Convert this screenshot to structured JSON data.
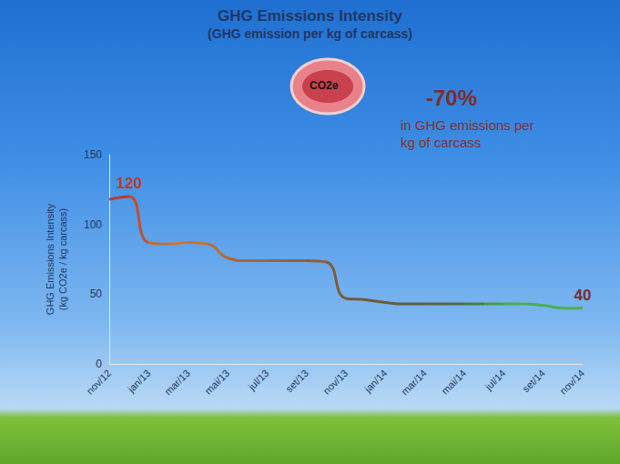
{
  "chart_data": {
    "type": "line",
    "title": "GHG Emissions Intensity",
    "subtitle": "(GHG emission per kg of carcass)",
    "y_label": "GHG Emissions Intensity (kg CO2e / kg carcass)",
    "categories": [
      "nov/12",
      null,
      "jan/13",
      null,
      "mar/13",
      null,
      "mai/13",
      null,
      "jul/13",
      null,
      "set/13",
      null,
      "nov/13",
      null,
      "jan/14",
      null,
      "mar/14",
      null,
      "mai/14",
      null,
      "jul/14",
      null,
      "set/14",
      null,
      "nov/14"
    ],
    "values": [
      118,
      120,
      87,
      86,
      87,
      86,
      76,
      74,
      74,
      74,
      74,
      73,
      47,
      46,
      44,
      43,
      43,
      43,
      43,
      43,
      43,
      43,
      42,
      40,
      40
    ],
    "colors": [
      "#c0392b",
      "#c0392b",
      "#c8642e",
      "#c87533",
      "#c87533",
      "#c07035",
      "#b06a38",
      "#a8653a",
      "#a0643a",
      "#9a603a",
      "#94603a",
      "#8a5a3a",
      "#7a5a38",
      "#6e5a38",
      "#6b5a3a",
      "#655e3a",
      "#60603a",
      "#5a663a",
      "#50703a",
      "#4a8a3c",
      "#4caf50",
      "#4caf50",
      "#4caf50",
      "#4caf50",
      "#4caf50"
    ],
    "ylim": [
      0,
      150
    ],
    "yticks": [
      0,
      50,
      100,
      150
    ],
    "grid": false,
    "annotations": [
      {
        "text": "120",
        "value": 120
      },
      {
        "text": "40",
        "value": 40
      },
      {
        "text": "-70%"
      },
      {
        "text": "in GHG emissions per kg of carcass"
      },
      {
        "text": "CO2e"
      }
    ]
  }
}
